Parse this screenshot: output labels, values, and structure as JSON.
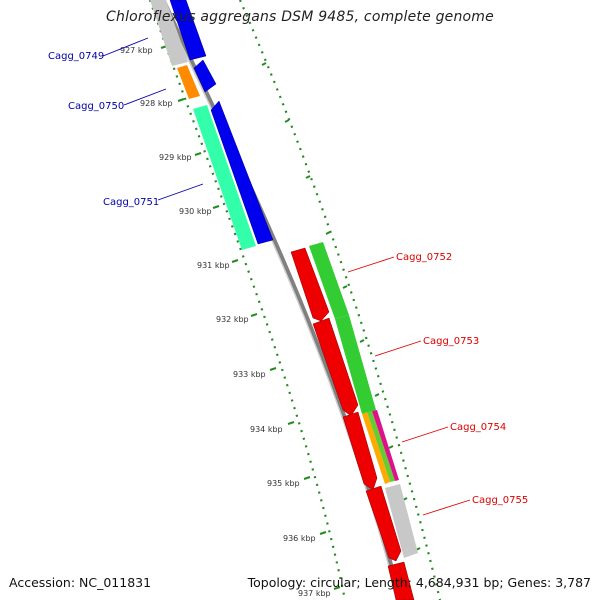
{
  "title": "Chloroflexus aggregans DSM 9485, complete genome",
  "footer": {
    "accession": "Accession: NC_011831",
    "summary": "Topology: circular; Length: 4,684,931 bp; Genes: 3,787"
  },
  "scale_labels": [
    {
      "kbp": 927,
      "label": "927 kbp"
    },
    {
      "kbp": 928,
      "label": "928 kbp"
    },
    {
      "kbp": 929,
      "label": "929 kbp"
    },
    {
      "kbp": 930,
      "label": "930 kbp"
    },
    {
      "kbp": 931,
      "label": "931 kbp"
    },
    {
      "kbp": 932,
      "label": "932 kbp"
    },
    {
      "kbp": 933,
      "label": "933 kbp"
    },
    {
      "kbp": 934,
      "label": "934 kbp"
    },
    {
      "kbp": 935,
      "label": "935 kbp"
    },
    {
      "kbp": 936,
      "label": "936 kbp"
    },
    {
      "kbp": 937,
      "label": "937 kbp"
    }
  ],
  "reverse_strand_genes": [
    {
      "name": "Cagg_0749",
      "label_color": "#0000aa",
      "cds_color": "#0000ee",
      "feature_color": "#c8c8c8"
    },
    {
      "name": "Cagg_0750",
      "label_color": "#0000aa",
      "cds_color": "#0000ee",
      "feature_color": "#ff8c00"
    },
    {
      "name": "Cagg_0751",
      "label_color": "#0000aa",
      "cds_color": "#0000ee",
      "feature_color": "#33ffaa"
    }
  ],
  "forward_strand_genes": [
    {
      "name": "Cagg_0752",
      "label_color": "#dd0000",
      "cds_color": "#ee0000",
      "feature_color": "#33cc33"
    },
    {
      "name": "Cagg_0753",
      "label_color": "#dd0000",
      "cds_color": "#ee0000",
      "feature_color": "#33cc33"
    },
    {
      "name": "Cagg_0754",
      "label_color": "#dd0000",
      "cds_color": "#ee0000",
      "feature_color": "#dd1188"
    },
    {
      "name": "Cagg_0755",
      "label_color": "#dd0000",
      "cds_color": "#ee0000",
      "feature_color": "#c8c8c8"
    }
  ],
  "colors": {
    "backbone": "#808080",
    "gc_track": "#228B22",
    "tick": "#228B22"
  }
}
